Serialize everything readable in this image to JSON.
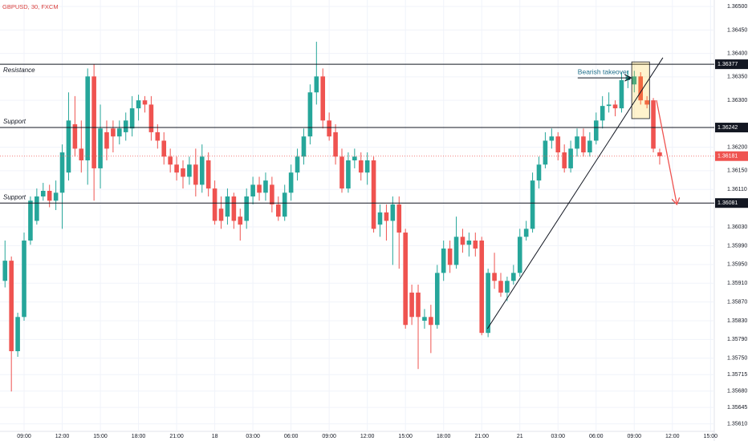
{
  "chart_data": {
    "type": "candlestick",
    "title": "GBPUSD, 30, FXCM",
    "up_color": "#26a69a",
    "down_color": "#ef5350",
    "grid": true,
    "xlim": [
      -0.79,
      111.59
    ],
    "ylim": [
      1.35594,
      1.36514
    ],
    "xticks": [
      {
        "value": 3,
        "label": "09:00"
      },
      {
        "value": 9,
        "label": "12:00"
      },
      {
        "value": 15,
        "label": "15:00"
      },
      {
        "value": 21,
        "label": "18:00"
      },
      {
        "value": 27,
        "label": "21:00"
      },
      {
        "value": 33,
        "label": "18"
      },
      {
        "value": 39,
        "label": "03:00"
      },
      {
        "value": 45,
        "label": "06:00"
      },
      {
        "value": 51,
        "label": "09:00"
      },
      {
        "value": 57,
        "label": "12:00"
      },
      {
        "value": 63,
        "label": "15:00"
      },
      {
        "value": 69,
        "label": "18:00"
      },
      {
        "value": 75,
        "label": "21:00"
      },
      {
        "value": 81,
        "label": "21"
      },
      {
        "value": 87,
        "label": "03:00"
      },
      {
        "value": 93,
        "label": "06:00"
      },
      {
        "value": 99,
        "label": "09:00"
      },
      {
        "value": 105,
        "label": "12:00"
      },
      {
        "value": 111,
        "label": "15:00"
      }
    ],
    "yticks": [
      {
        "value": 1.365,
        "label": "1.36500"
      },
      {
        "value": 1.3645,
        "label": "1.36450"
      },
      {
        "value": 1.364,
        "label": "1.36400"
      },
      {
        "value": 1.3635,
        "label": "1.36350"
      },
      {
        "value": 1.363,
        "label": "1.36300"
      },
      {
        "value": 1.362,
        "label": "1.36200"
      },
      {
        "value": 1.3615,
        "label": "1.36150"
      },
      {
        "value": 1.3611,
        "label": "1.36110"
      },
      {
        "value": 1.3603,
        "label": "1.36030"
      },
      {
        "value": 1.3599,
        "label": "1.35990"
      },
      {
        "value": 1.3595,
        "label": "1.35950"
      },
      {
        "value": 1.3591,
        "label": "1.35910"
      },
      {
        "value": 1.3587,
        "label": "1.35870"
      },
      {
        "value": 1.3583,
        "label": "1.35830"
      },
      {
        "value": 1.3579,
        "label": "1.35790"
      },
      {
        "value": 1.3575,
        "label": "1.35750"
      },
      1.35715,
      {
        "value": 1.3568,
        "label": "1.35680"
      },
      1.35645,
      {
        "value": 1.3561,
        "label": "1.35610"
      }
    ],
    "open": [
      1.35915,
      1.35958,
      1.35765,
      1.35838,
      1.36001,
      1.36043,
      1.36095,
      1.36107,
      1.36086,
      1.36103,
      1.36146,
      1.36249,
      1.36197,
      1.36172,
      1.36351,
      1.36155,
      1.36232,
      1.3624,
      1.36223,
      1.36232,
      1.3624,
      1.36283,
      1.363,
      1.36291,
      1.36232,
      1.36214,
      1.3618,
      1.36163,
      1.36155,
      1.36137,
      1.36163,
      1.3612,
      1.36172,
      1.36112,
      1.36069,
      1.36052,
      1.36095,
      1.36052,
      1.36043,
      1.36095,
      1.3612,
      1.36103,
      1.3612,
      1.36078,
      1.36052,
      1.36103,
      1.36146,
      1.3618,
      1.36223,
      1.36317,
      1.36351,
      1.36257,
      1.36232,
      1.3618,
      1.36112,
      1.36172,
      1.36172,
      1.36146,
      1.36172,
      1.36035,
      1.36061,
      1.36043,
      1.36078,
      1.36018,
      1.3589,
      1.3589,
      1.3583,
      1.35838,
      1.35821,
      1.35932,
      1.35984,
      1.35949,
      1.36009,
      1.35992,
      1.36001,
      1.36001,
      1.35804,
      1.35932,
      1.35915,
      1.3589,
      1.35915,
      1.35932,
      1.36009,
      1.36026,
      1.36129,
      1.36163,
      1.36214,
      1.36223,
      1.36189,
      1.36155,
      1.36197,
      1.36223,
      1.36189,
      1.36214,
      1.36257,
      1.36288,
      1.36291,
      1.36283,
      1.36343,
      1.36334,
      1.36351,
      1.363,
      1.363,
      1.36189
    ],
    "high": [
      1.36001,
      1.35967,
      1.35847,
      1.36018,
      1.36095,
      1.36112,
      1.36124,
      1.3612,
      1.36129,
      1.36206,
      1.36317,
      1.36309,
      1.36257,
      1.36368,
      1.36377,
      1.36291,
      1.36257,
      1.36257,
      1.36257,
      1.36274,
      1.36309,
      1.36312,
      1.36309,
      1.36309,
      1.36249,
      1.36232,
      1.36197,
      1.3618,
      1.36172,
      1.3618,
      1.36197,
      1.36206,
      1.36189,
      1.36129,
      1.36095,
      1.36112,
      1.36103,
      1.36069,
      1.36112,
      1.36137,
      1.36137,
      1.36146,
      1.36137,
      1.36095,
      1.3612,
      1.36163,
      1.36197,
      1.3624,
      1.36334,
      1.36425,
      1.36368,
      1.36274,
      1.36249,
      1.36197,
      1.36189,
      1.36197,
      1.36189,
      1.36189,
      1.3618,
      1.36078,
      1.36078,
      1.36095,
      1.36095,
      1.36026,
      1.35907,
      1.35907,
      1.35855,
      1.35864,
      1.35949,
      1.36001,
      1.36001,
      1.36052,
      1.36026,
      1.36018,
      1.36018,
      1.36009,
      1.35941,
      1.35975,
      1.35932,
      1.35924,
      1.35949,
      1.36026,
      1.36043,
      1.36146,
      1.3618,
      1.36232,
      1.3624,
      1.36232,
      1.36206,
      1.36214,
      1.3624,
      1.3624,
      1.36232,
      1.36274,
      1.36309,
      1.36317,
      1.363,
      1.3636,
      1.36363,
      1.36363,
      1.3636,
      1.36309,
      1.36305,
      1.36197
    ],
    "low": [
      1.35901,
      1.35679,
      1.35753,
      1.3583,
      1.35992,
      1.36035,
      1.36086,
      1.36072,
      1.36066,
      1.36026,
      1.36129,
      1.3618,
      1.36146,
      1.3612,
      1.36086,
      1.36112,
      1.36172,
      1.36189,
      1.36206,
      1.36214,
      1.36223,
      1.36257,
      1.36274,
      1.36214,
      1.36197,
      1.36163,
      1.36146,
      1.36129,
      1.36112,
      1.3612,
      1.36095,
      1.36103,
      1.36095,
      1.36035,
      1.36026,
      1.36035,
      1.36026,
      1.36001,
      1.36026,
      1.36078,
      1.36086,
      1.36086,
      1.36061,
      1.36043,
      1.36043,
      1.36086,
      1.36129,
      1.36163,
      1.36206,
      1.36291,
      1.3624,
      1.36214,
      1.36163,
      1.36103,
      1.36103,
      1.36155,
      1.36129,
      1.3612,
      1.36018,
      1.36009,
      1.36001,
      1.35949,
      1.35941,
      1.35813,
      1.35821,
      1.35727,
      1.35813,
      1.35761,
      1.35813,
      1.35915,
      1.35932,
      1.35941,
      1.35975,
      1.35967,
      1.35967,
      1.35799,
      1.35795,
      1.35898,
      1.35881,
      1.35872,
      1.35907,
      1.35924,
      1.36001,
      1.36018,
      1.36112,
      1.36155,
      1.36197,
      1.36172,
      1.36146,
      1.36146,
      1.3618,
      1.3618,
      1.3618,
      1.36206,
      1.3624,
      1.36274,
      1.36266,
      1.36274,
      1.36326,
      1.36317,
      1.36291,
      1.36283,
      1.36189,
      1.36163
    ],
    "close": [
      1.35958,
      1.35765,
      1.35838,
      1.36001,
      1.36086,
      1.36095,
      1.36107,
      1.36086,
      1.36103,
      1.36189,
      1.36257,
      1.36197,
      1.36172,
      1.36351,
      1.36155,
      1.3624,
      1.36197,
      1.36223,
      1.3624,
      1.36257,
      1.36283,
      1.363,
      1.36291,
      1.36232,
      1.36214,
      1.3618,
      1.36163,
      1.36146,
      1.36137,
      1.36163,
      1.3612,
      1.3618,
      1.36112,
      1.36043,
      1.36043,
      1.36095,
      1.36043,
      1.36035,
      1.36095,
      1.3612,
      1.36103,
      1.36129,
      1.36078,
      1.36052,
      1.36103,
      1.36146,
      1.3618,
      1.36223,
      1.36317,
      1.36351,
      1.36257,
      1.36223,
      1.3618,
      1.36112,
      1.36172,
      1.3618,
      1.36146,
      1.36172,
      1.36026,
      1.36061,
      1.36043,
      1.36078,
      1.36018,
      1.35821,
      1.35838,
      1.35838,
      1.35838,
      1.35821,
      1.35932,
      1.35984,
      1.35949,
      1.36009,
      1.35992,
      1.36001,
      1.35984,
      1.35804,
      1.35932,
      1.35915,
      1.3589,
      1.35915,
      1.35932,
      1.36009,
      1.36026,
      1.36129,
      1.36163,
      1.36214,
      1.36223,
      1.36189,
      1.36155,
      1.36197,
      1.36223,
      1.36189,
      1.36214,
      1.36257,
      1.36288,
      1.36291,
      1.36283,
      1.36343,
      1.36351,
      1.36351,
      1.363,
      1.36291,
      1.36197,
      1.36181
    ],
    "levels": [
      {
        "label": "Resistance",
        "value": 1.36377
      },
      {
        "label": "Support",
        "value": 1.36242
      },
      {
        "label": "Support",
        "value": 1.36081
      }
    ],
    "last_price": 1.36181,
    "trendline": {
      "start": [
        75.9,
        1.35813
      ],
      "end": [
        103.5,
        1.36391
      ]
    },
    "forecast_arrow": {
      "start": [
        102.5,
        1.363
      ],
      "end": [
        105.7,
        1.36078
      ]
    },
    "highlight_box": {
      "x": [
        98.6,
        101.4
      ],
      "y": [
        1.36261,
        1.36382
      ]
    },
    "takeover": {
      "text": "Bearish takeover",
      "start": [
        90.1,
        1.36348
      ],
      "end": [
        98.5,
        1.36348
      ]
    }
  }
}
